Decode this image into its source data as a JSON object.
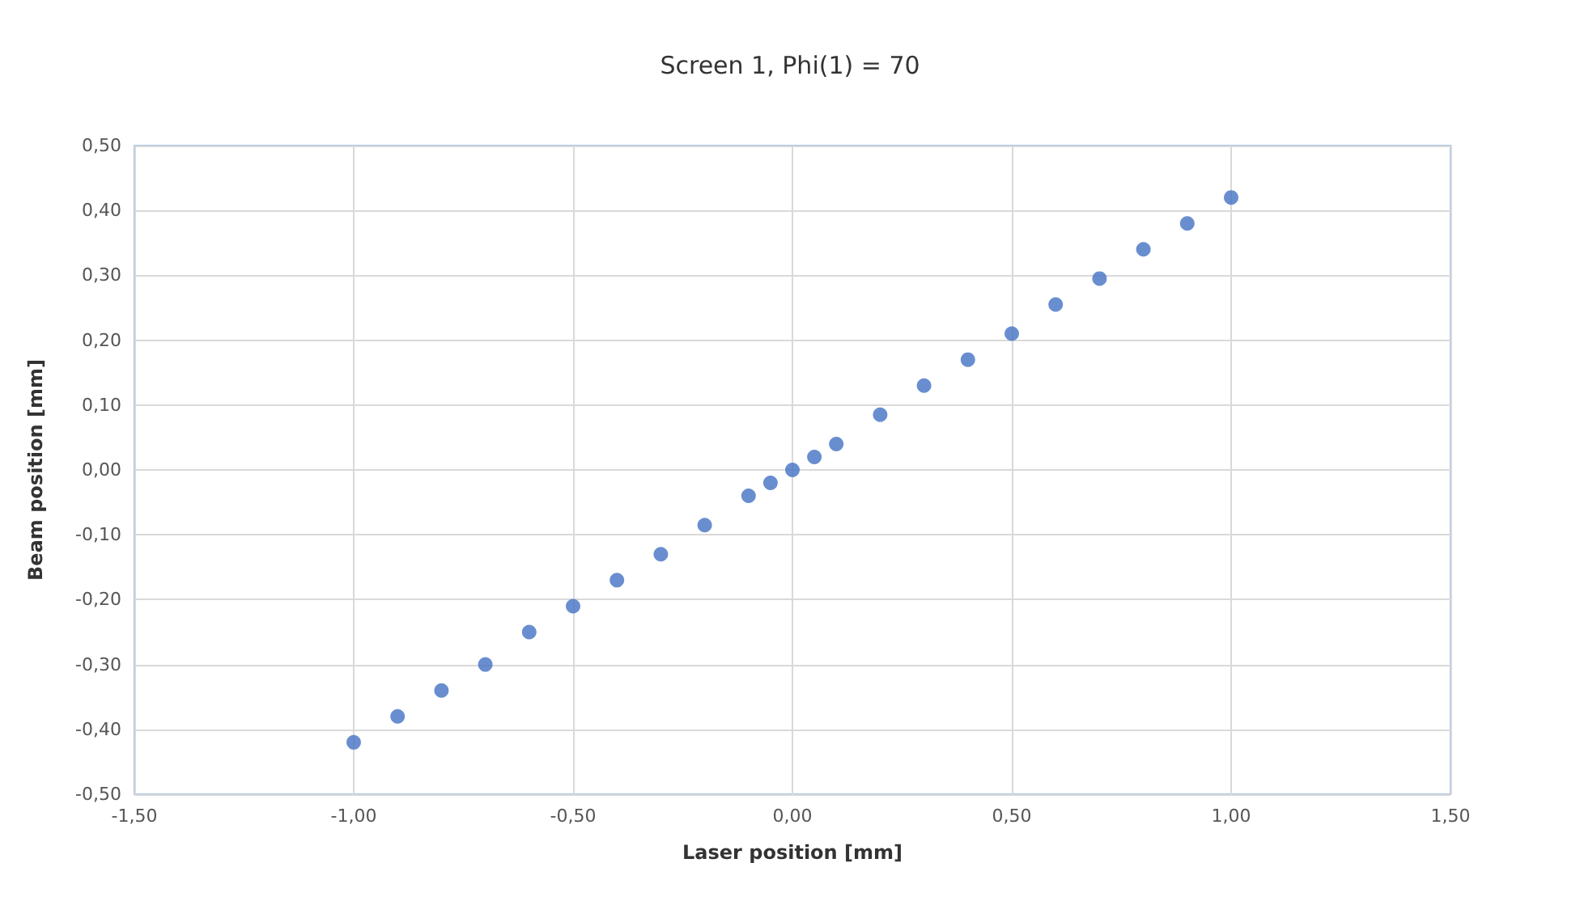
{
  "chart_data": {
    "type": "scatter",
    "title": "Screen 1, Phi(1) = 70",
    "xlabel": "Laser position [mm]",
    "ylabel": "Beam position [mm]",
    "x": [
      -1.0,
      -0.9,
      -0.8,
      -0.7,
      -0.6,
      -0.5,
      -0.4,
      -0.3,
      -0.2,
      -0.1,
      -0.05,
      0,
      0.05,
      0.1,
      0.2,
      0.3,
      0.4,
      0.5,
      0.6,
      0.7,
      0.8,
      0.9,
      1.0
    ],
    "values": [
      -0.42,
      -0.38,
      -0.34,
      -0.3,
      -0.25,
      -0.21,
      -0.17,
      -0.13,
      -0.085,
      -0.04,
      -0.02,
      0,
      0.02,
      0.04,
      0.085,
      0.13,
      0.17,
      0.21,
      0.255,
      0.295,
      0.34,
      0.38,
      0.42
    ],
    "color": "#4472c4",
    "marker": "circle",
    "grid": true,
    "xlim": [
      -1.5,
      1.5
    ],
    "xticks": [
      {
        "value": -1.5,
        "label": "-1,50"
      },
      {
        "value": -1,
        "label": "-1,00"
      },
      {
        "value": -0.5,
        "label": "-0,50"
      },
      {
        "value": 0,
        "label": "0,00"
      },
      {
        "value": 0.5,
        "label": "0,50"
      },
      {
        "value": 1,
        "label": "1,00"
      },
      {
        "value": 1.5,
        "label": "1,50"
      }
    ],
    "ylim": [
      -0.5,
      0.5
    ],
    "yticks": [
      {
        "value": -0.5,
        "label": "-0,50"
      },
      {
        "value": -0.4,
        "label": "-0,40"
      },
      {
        "value": -0.3,
        "label": "-0,30"
      },
      {
        "value": -0.2,
        "label": "-0,20"
      },
      {
        "value": -0.1,
        "label": "-0,10"
      },
      {
        "value": 0,
        "label": "0,00"
      },
      {
        "value": 0.1,
        "label": "0,10"
      },
      {
        "value": 0.2,
        "label": "0,20"
      },
      {
        "value": 0.3,
        "label": "0,30"
      },
      {
        "value": 0.4,
        "label": "0,40"
      },
      {
        "value": 0.5,
        "label": "0,50"
      }
    ]
  }
}
